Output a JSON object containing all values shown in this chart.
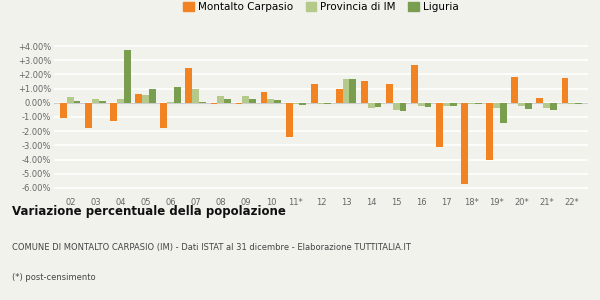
{
  "categories": [
    "02",
    "03",
    "04",
    "05",
    "06",
    "07",
    "08",
    "09",
    "10",
    "11*",
    "12",
    "13",
    "14",
    "15",
    "16",
    "17",
    "18*",
    "19*",
    "20*",
    "21*",
    "22*"
  ],
  "montalto": [
    -1.1,
    -1.8,
    -1.3,
    0.6,
    -1.8,
    2.45,
    -0.05,
    -0.1,
    0.75,
    -2.4,
    1.35,
    1.0,
    1.55,
    1.3,
    2.7,
    -3.1,
    -5.7,
    -4.0,
    1.8,
    0.35,
    1.75
  ],
  "provincia": [
    0.4,
    0.25,
    0.3,
    0.55,
    0.05,
    0.95,
    0.45,
    0.45,
    0.3,
    -0.1,
    -0.05,
    1.65,
    -0.35,
    -0.5,
    -0.25,
    -0.2,
    -0.1,
    -0.35,
    -0.2,
    -0.35,
    -0.1
  ],
  "liguria_vals": [
    0.15,
    0.1,
    3.7,
    1.0,
    1.1,
    0.05,
    0.3,
    0.3,
    0.2,
    -0.15,
    -0.05,
    1.65,
    -0.3,
    -0.55,
    -0.3,
    -0.2,
    -0.1,
    -1.4,
    -0.45,
    -0.5,
    -0.1
  ],
  "montalto_color": "#f28322",
  "provincia_color": "#b5c98a",
  "liguria_color": "#7a9e50",
  "bg_color": "#f2f2ed",
  "grid_color": "#ffffff",
  "ylim_min": -6.5,
  "ylim_max": 4.5,
  "yticks": [
    -6.0,
    -5.0,
    -4.0,
    -3.0,
    -2.0,
    -1.0,
    0.0,
    1.0,
    2.0,
    3.0,
    4.0
  ],
  "ytick_labels": [
    "-6.00%",
    "-5.00%",
    "-4.00%",
    "-3.00%",
    "-2.00%",
    "-1.00%",
    "0.00%",
    "+1.00%",
    "+2.00%",
    "+3.00%",
    "+4.00%"
  ],
  "title_bold": "Variazione percentuale della popolazione",
  "subtitle": "COMUNE DI MONTALTO CARPASIO (IM) - Dati ISTAT al 31 dicembre - Elaborazione TUTTITALIA.IT",
  "footnote": "(*) post-censimento",
  "legend_labels": [
    "Montalto Carpasio",
    "Provincia di IM",
    "Liguria"
  ]
}
